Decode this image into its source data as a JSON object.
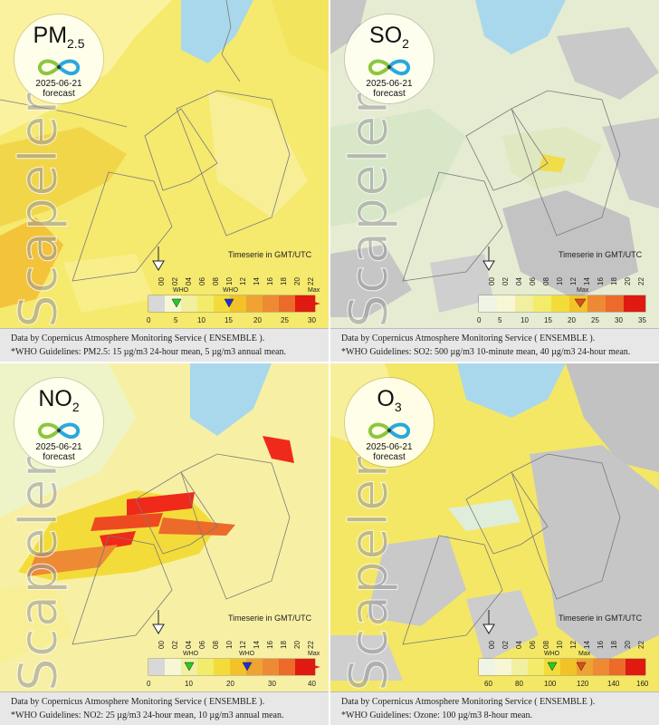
{
  "panels": [
    {
      "pollutant": "PM",
      "pollutant_sub": "2.5",
      "date": "2025-06-21",
      "kind": "forecast",
      "watermark": "Scapeler",
      "timeseries_label": "Timeserie in GMT/UTC",
      "hours": [
        "00",
        "02",
        "04",
        "06",
        "08",
        "10",
        "12",
        "14",
        "16",
        "18",
        "20",
        "22"
      ],
      "scale_ticks": [
        "0",
        "5",
        "10",
        "15",
        "20",
        "25",
        "30"
      ],
      "scale_labels": [
        "WHO",
        "WHO",
        "Max"
      ],
      "footer_source": "Data by Copernicus Atmosphere Monitoring Service ( ENSEMBLE ).",
      "footer_who": "*WHO Guidelines: PM2.5: 15 µg/m3 24-hour mean, 5 µg/m3 annual mean.",
      "marker_colors": [
        "#22cc22",
        "#1c2fd6"
      ]
    },
    {
      "pollutant": "SO",
      "pollutant_sub": "2",
      "date": "2025-06-21",
      "kind": "forecast",
      "watermark": "Scapeler",
      "timeseries_label": "Timeserie in GMT/UTC",
      "hours": [
        "00",
        "02",
        "04",
        "06",
        "08",
        "10",
        "12",
        "14",
        "16",
        "18",
        "20",
        "22"
      ],
      "scale_ticks": [
        "0",
        "5",
        "10",
        "15",
        "20",
        "25",
        "30",
        "35"
      ],
      "scale_labels": [
        "Max"
      ],
      "footer_source": "Data by Copernicus Atmosphere Monitoring Service ( ENSEMBLE ).",
      "footer_who": "*WHO Guidelines: SO2: 500 µg/m3 10-minute mean, 40 µg/m3 24-hour mean.",
      "marker_colors": [
        "#e24a1a"
      ]
    },
    {
      "pollutant": "NO",
      "pollutant_sub": "2",
      "date": "2025-06-21",
      "kind": "forecast",
      "watermark": "Scapeler",
      "timeseries_label": "Timeserie in GMT/UTC",
      "hours": [
        "00",
        "02",
        "04",
        "06",
        "08",
        "10",
        "12",
        "14",
        "16",
        "18",
        "20",
        "22"
      ],
      "scale_ticks": [
        "0",
        "10",
        "20",
        "30",
        "40"
      ],
      "scale_labels": [
        "WHO",
        "WHO",
        "Max"
      ],
      "footer_source": "Data by Copernicus Atmosphere Monitoring Service ( ENSEMBLE ).",
      "footer_who": "*WHO Guidelines: NO2: 25 µg/m3 24-hour mean, 10 µg/m3 annual mean.",
      "marker_colors": [
        "#22cc22",
        "#1c2fd6"
      ]
    },
    {
      "pollutant": "O",
      "pollutant_sub": "3",
      "date": "2025-06-21",
      "kind": "forecast",
      "watermark": "Scapeler",
      "timeseries_label": "Timeserie in GMT/UTC",
      "hours": [
        "00",
        "02",
        "04",
        "06",
        "08",
        "10",
        "12",
        "14",
        "16",
        "18",
        "20",
        "22"
      ],
      "scale_ticks": [
        "60",
        "80",
        "100",
        "120",
        "140",
        "160"
      ],
      "scale_labels": [
        "WHO",
        "Max"
      ],
      "footer_source": "Data by Copernicus Atmosphere Monitoring Service ( ENSEMBLE ).",
      "footer_who": "*WHO Guidelines: Ozone: 100 µg/m3 8-hour mean.",
      "marker_colors": [
        "#22cc22",
        "#e24a1a"
      ]
    }
  ],
  "colors": {
    "sea": "#a9d8ec",
    "land_low": "#f4ec86",
    "land_mid": "#f1dc4a",
    "no_data": "#bdbdbd",
    "high": "#ef2a1a",
    "scale_steps": [
      "#f7f7d6",
      "#f0f0a0",
      "#f3ec6a",
      "#f3dc3a",
      "#f2c228",
      "#eea332",
      "#ee8a34",
      "#ec6a2a",
      "#e84a1c",
      "#e01a10"
    ]
  }
}
